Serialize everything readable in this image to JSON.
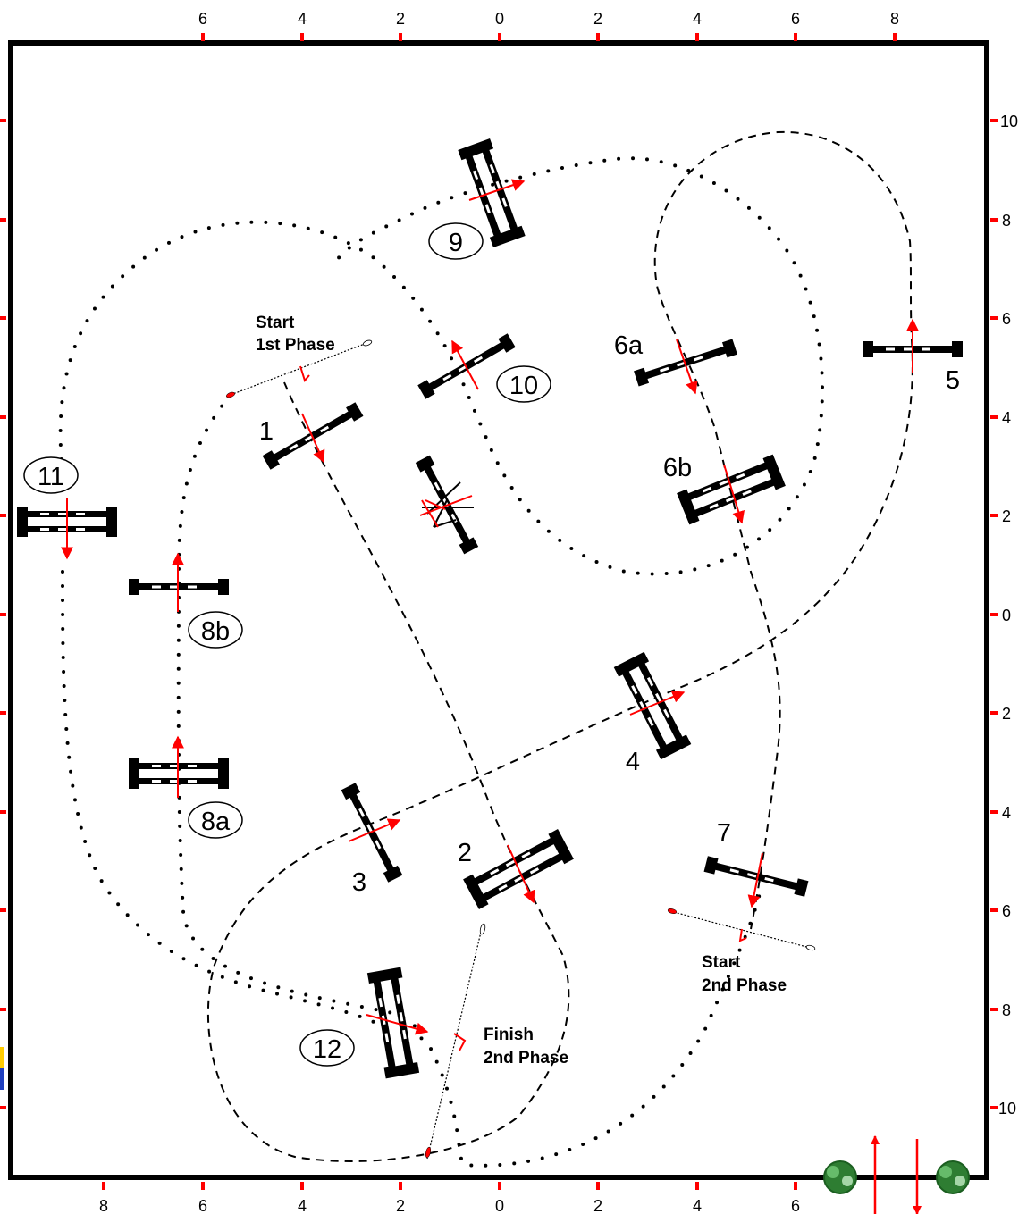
{
  "axes": {
    "top_ticks": [
      "6",
      "4",
      "2",
      "0",
      "2",
      "4",
      "6",
      "8"
    ],
    "bottom_ticks": [
      "8",
      "6",
      "4",
      "2",
      "0",
      "2",
      "4",
      "6"
    ],
    "right_ticks": [
      "10",
      "8",
      "6",
      "4",
      "2",
      "0",
      "2",
      "4",
      "6",
      "8",
      "10"
    ]
  },
  "fences": {
    "f1": "1",
    "f2": "2",
    "f3": "3",
    "f4": "4",
    "f5": "5",
    "f6a": "6a",
    "f6b": "6b",
    "f7": "7",
    "f8a": "8a",
    "f8b": "8b",
    "f9": "9",
    "f10": "10",
    "f11": "11",
    "f12": "12"
  },
  "notes": {
    "start1_line1": "Start",
    "start1_line2": "1st Phase",
    "start2_line1": "Start",
    "start2_line2": "2nd Phase",
    "finish2_line1": "Finish",
    "finish2_line2": "2nd Phase"
  },
  "colors": {
    "arrow": "#ff0000",
    "tick": "#ff0000",
    "border": "#000000",
    "tree": "#2e7d32",
    "flag_yellow": "#ffcc00",
    "flag_blue": "#1f3fbf"
  },
  "icons": [
    "tree-icon",
    "arrow-up-icon",
    "arrow-down-icon"
  ]
}
